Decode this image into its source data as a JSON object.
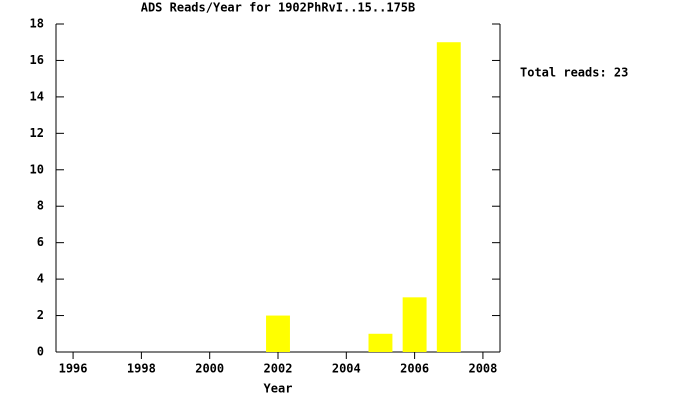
{
  "chart_data": {
    "type": "bar",
    "title": "ADS Reads/Year for 1902PhRvI..15..175B",
    "x_label": "Year",
    "annotation": "Total reads: 23",
    "x": [
      2002,
      2005,
      2006,
      2007
    ],
    "values": [
      2,
      1,
      3,
      17
    ],
    "color": "#ffff00",
    "xlim": [
      1995.5,
      2008.5
    ],
    "xticks": [
      1996,
      1998,
      2000,
      2002,
      2004,
      2006,
      2008
    ],
    "ylim": [
      0,
      18
    ],
    "yticks": [
      0,
      2,
      4,
      6,
      8,
      10,
      12,
      14,
      16,
      18
    ],
    "grid": false
  }
}
